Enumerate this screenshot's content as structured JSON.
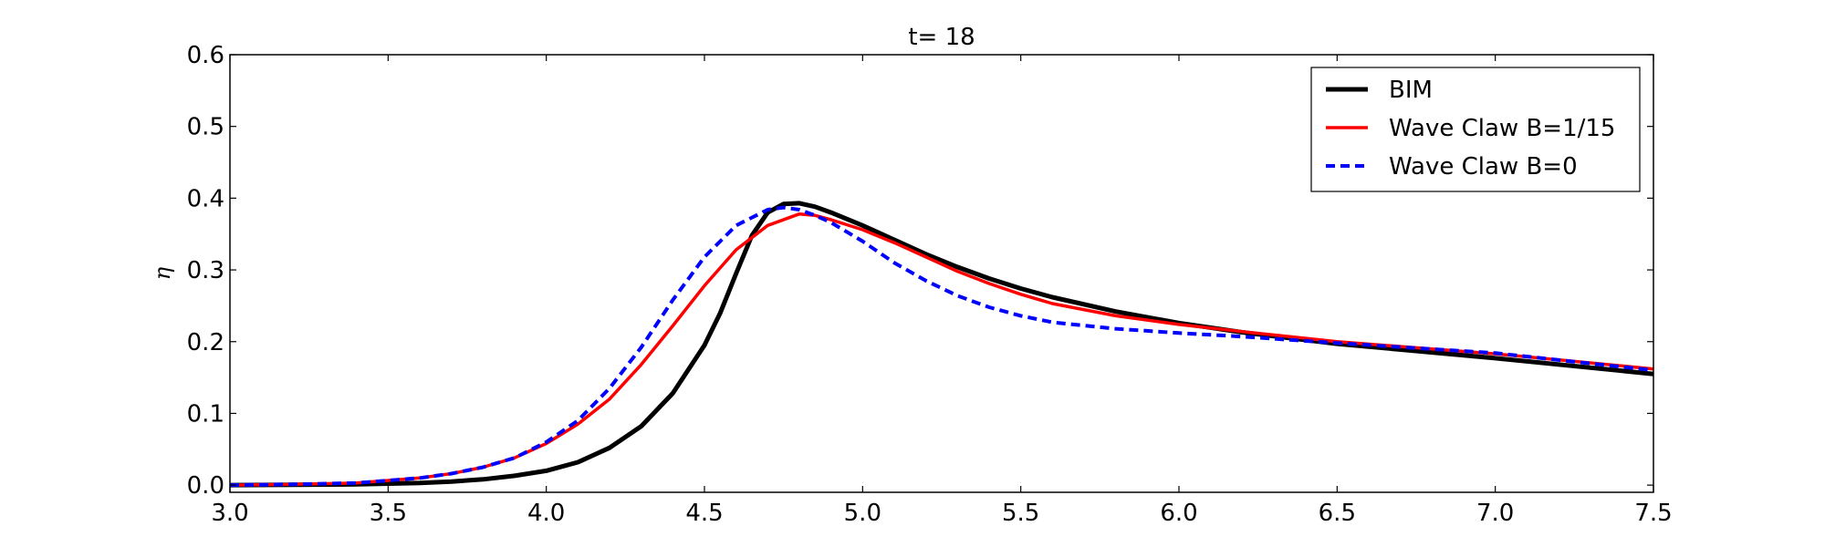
{
  "chart_data": {
    "type": "line",
    "title": "t= 18",
    "xlabel": "",
    "ylabel": "η",
    "xlim": [
      3.0,
      7.5
    ],
    "ylim": [
      -0.01,
      0.6
    ],
    "xticks": [
      "3.0",
      "3.5",
      "4.0",
      "4.5",
      "5.0",
      "5.5",
      "6.0",
      "6.5",
      "7.0",
      "7.5"
    ],
    "yticks": [
      "0.0",
      "0.1",
      "0.2",
      "0.3",
      "0.4",
      "0.5",
      "0.6"
    ],
    "grid": false,
    "legend_position": "top-right",
    "series": [
      {
        "name": "BIM",
        "color": "#000000",
        "style": "solid",
        "x": [
          3.0,
          3.2,
          3.4,
          3.6,
          3.7,
          3.8,
          3.9,
          4.0,
          4.1,
          4.2,
          4.3,
          4.4,
          4.5,
          4.55,
          4.6,
          4.65,
          4.7,
          4.75,
          4.8,
          4.85,
          4.9,
          5.0,
          5.1,
          5.2,
          5.3,
          5.4,
          5.5,
          5.6,
          5.8,
          6.0,
          6.2,
          6.5,
          7.0,
          7.5
        ],
        "y": [
          0.0,
          0.0005,
          0.001,
          0.003,
          0.005,
          0.008,
          0.013,
          0.02,
          0.032,
          0.052,
          0.082,
          0.128,
          0.195,
          0.24,
          0.295,
          0.348,
          0.38,
          0.392,
          0.393,
          0.388,
          0.38,
          0.362,
          0.342,
          0.322,
          0.304,
          0.288,
          0.274,
          0.262,
          0.242,
          0.226,
          0.213,
          0.197,
          0.177,
          0.155
        ]
      },
      {
        "name": "Wave Claw B=1/15",
        "color": "#ff0000",
        "style": "solid",
        "x": [
          3.0,
          3.2,
          3.4,
          3.6,
          3.7,
          3.8,
          3.9,
          4.0,
          4.1,
          4.2,
          4.3,
          4.4,
          4.5,
          4.6,
          4.7,
          4.8,
          4.85,
          4.9,
          5.0,
          5.1,
          5.2,
          5.3,
          5.4,
          5.5,
          5.6,
          5.8,
          6.0,
          6.2,
          6.5,
          7.0,
          7.5
        ],
        "y": [
          0.0,
          0.001,
          0.003,
          0.01,
          0.016,
          0.025,
          0.038,
          0.058,
          0.085,
          0.12,
          0.168,
          0.222,
          0.278,
          0.328,
          0.362,
          0.378,
          0.376,
          0.37,
          0.356,
          0.338,
          0.318,
          0.298,
          0.281,
          0.266,
          0.253,
          0.236,
          0.224,
          0.214,
          0.2,
          0.183,
          0.162
        ]
      },
      {
        "name": "Wave Claw B=0",
        "color": "#0000ff",
        "style": "dashed",
        "x": [
          3.0,
          3.2,
          3.4,
          3.6,
          3.7,
          3.8,
          3.9,
          4.0,
          4.1,
          4.2,
          4.3,
          4.4,
          4.5,
          4.6,
          4.7,
          4.75,
          4.8,
          4.85,
          4.9,
          5.0,
          5.1,
          5.2,
          5.3,
          5.4,
          5.5,
          5.6,
          5.8,
          6.0,
          6.2,
          6.5,
          7.0,
          7.5
        ],
        "y": [
          0.0,
          0.001,
          0.003,
          0.01,
          0.016,
          0.025,
          0.038,
          0.06,
          0.09,
          0.135,
          0.192,
          0.258,
          0.318,
          0.362,
          0.384,
          0.387,
          0.384,
          0.376,
          0.366,
          0.34,
          0.31,
          0.285,
          0.264,
          0.248,
          0.236,
          0.227,
          0.218,
          0.212,
          0.207,
          0.198,
          0.184,
          0.16
        ]
      }
    ]
  }
}
